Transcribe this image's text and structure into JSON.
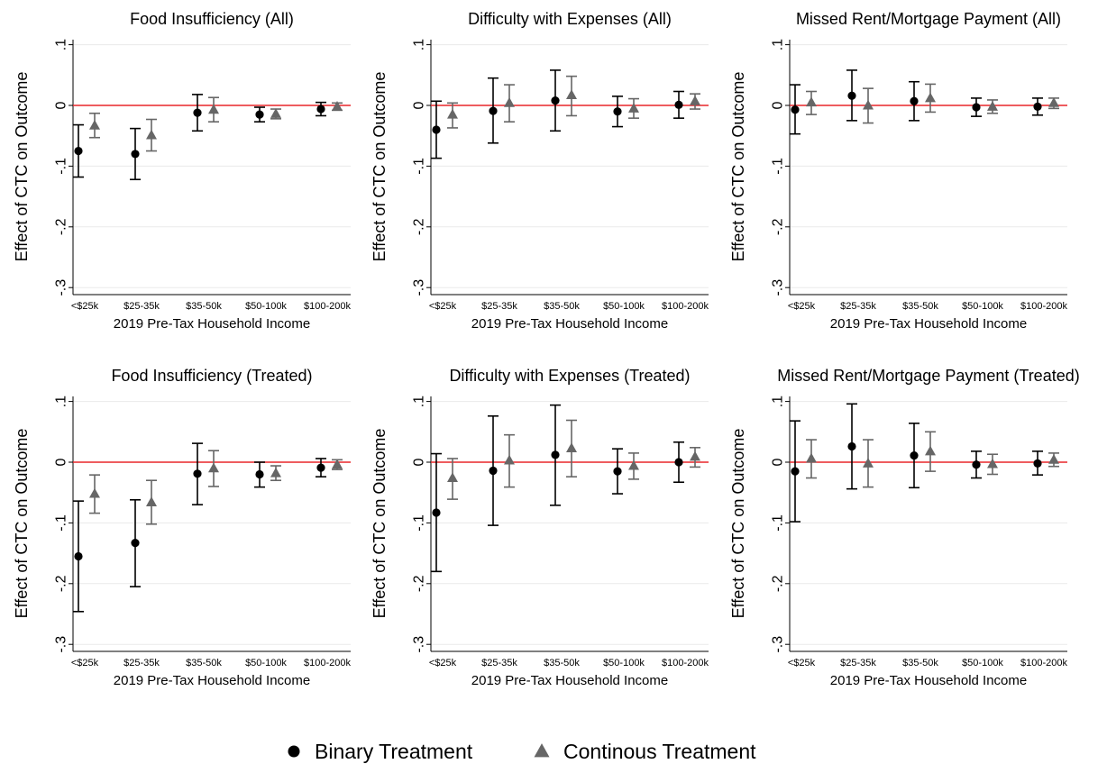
{
  "legend": {
    "placement": "bottom-center",
    "items": [
      {
        "label": "Binary Treatment",
        "marker": "circle",
        "color": "#000000"
      },
      {
        "label": "Continous Treatment",
        "marker": "triangle",
        "color": "#666666"
      }
    ]
  },
  "colors": {
    "binary": "#000000",
    "continuous": "#666666",
    "zero_line": "#e8272a",
    "grid": "#eaeaea"
  },
  "chart_data": [
    {
      "type": "scatter",
      "title": "Food Insufficiency (All)",
      "xlabel": "2019 Pre-Tax Household Income",
      "ylabel": "Effect of CTC on Outcome",
      "categories": [
        "<$25k",
        "$25-35k",
        "$35-50k",
        "$50-100k",
        "$100-200k"
      ],
      "yticks": [
        ".1",
        "0",
        "-.1",
        "-.2",
        "-.3"
      ],
      "ylim": [
        -0.31,
        0.11
      ],
      "grid": true,
      "series": [
        {
          "name": "Binary Treatment",
          "marker": "circle",
          "values": [
            -0.075,
            -0.08,
            -0.012,
            -0.015,
            -0.006
          ],
          "lower": [
            -0.118,
            -0.122,
            -0.042,
            -0.027,
            -0.017
          ],
          "upper": [
            -0.032,
            -0.038,
            0.018,
            -0.003,
            0.005
          ]
        },
        {
          "name": "Continous Treatment",
          "marker": "triangle",
          "values": [
            -0.033,
            -0.049,
            -0.007,
            -0.014,
            -0.002
          ],
          "lower": [
            -0.053,
            -0.075,
            -0.027,
            -0.022,
            -0.008
          ],
          "upper": [
            -0.013,
            -0.023,
            0.013,
            -0.006,
            0.004
          ]
        }
      ]
    },
    {
      "type": "scatter",
      "title": "Difficulty with Expenses (All)",
      "xlabel": "2019 Pre-Tax Household Income",
      "ylabel": "Effect of CTC on Outcome",
      "categories": [
        "<$25k",
        "$25-35k",
        "$35-50k",
        "$50-100k",
        "$100-200k"
      ],
      "yticks": [
        ".1",
        "0",
        "-.1",
        "-.2",
        "-.3"
      ],
      "ylim": [
        -0.31,
        0.11
      ],
      "grid": true,
      "series": [
        {
          "name": "Binary Treatment",
          "marker": "circle",
          "values": [
            -0.04,
            -0.009,
            0.008,
            -0.01,
            0.001
          ],
          "lower": [
            -0.087,
            -0.062,
            -0.042,
            -0.035,
            -0.021
          ],
          "upper": [
            0.007,
            0.045,
            0.058,
            0.015,
            0.023
          ]
        },
        {
          "name": "Continous Treatment",
          "marker": "triangle",
          "values": [
            -0.015,
            0.004,
            0.017,
            -0.005,
            0.007
          ],
          "lower": [
            -0.037,
            -0.027,
            -0.017,
            -0.021,
            -0.006
          ],
          "upper": [
            0.004,
            0.034,
            0.048,
            0.011,
            0.019
          ]
        }
      ]
    },
    {
      "type": "scatter",
      "title": "Missed Rent/Mortgage Payment (All)",
      "xlabel": "2019 Pre-Tax Household Income",
      "ylabel": "Effect of CTC on Outcome",
      "categories": [
        "<$25k",
        "$25-35k",
        "$35-50k",
        "$50-100k",
        "$100-200k"
      ],
      "yticks": [
        ".1",
        "0",
        "-.1",
        "-.2",
        "-.3"
      ],
      "ylim": [
        -0.31,
        0.11
      ],
      "grid": true,
      "series": [
        {
          "name": "Binary Treatment",
          "marker": "circle",
          "values": [
            -0.007,
            0.016,
            0.007,
            -0.003,
            -0.002
          ],
          "lower": [
            -0.047,
            -0.025,
            -0.025,
            -0.018,
            -0.016
          ],
          "upper": [
            0.034,
            0.058,
            0.039,
            0.012,
            0.012
          ]
        },
        {
          "name": "Continous Treatment",
          "marker": "triangle",
          "values": [
            0.005,
            0.0,
            0.012,
            -0.002,
            0.004
          ],
          "lower": [
            -0.015,
            -0.029,
            -0.011,
            -0.013,
            -0.005
          ],
          "upper": [
            0.023,
            0.028,
            0.035,
            0.009,
            0.012
          ]
        }
      ]
    },
    {
      "type": "scatter",
      "title": "Food Insufficiency (Treated)",
      "xlabel": "2019 Pre-Tax Household Income",
      "ylabel": "Effect of CTC on Outcome",
      "categories": [
        "<$25k",
        "$25-35k",
        "$35-50k",
        "$50-100k",
        "$100-200k"
      ],
      "yticks": [
        ".1",
        "0",
        "-.1",
        "-.2",
        "-.3"
      ],
      "ylim": [
        -0.31,
        0.11
      ],
      "grid": true,
      "series": [
        {
          "name": "Binary Treatment",
          "marker": "circle",
          "values": [
            -0.155,
            -0.133,
            -0.019,
            -0.02,
            -0.009
          ],
          "lower": [
            -0.246,
            -0.205,
            -0.07,
            -0.041,
            -0.024
          ],
          "upper": [
            -0.064,
            -0.062,
            0.031,
            0.0,
            0.006
          ]
        },
        {
          "name": "Continous Treatment",
          "marker": "triangle",
          "values": [
            -0.052,
            -0.066,
            -0.01,
            -0.018,
            -0.004
          ],
          "lower": [
            -0.084,
            -0.102,
            -0.04,
            -0.03,
            -0.012
          ],
          "upper": [
            -0.021,
            -0.03,
            0.019,
            -0.006,
            0.004
          ]
        }
      ]
    },
    {
      "type": "scatter",
      "title": "Difficulty with Expenses (Treated)",
      "xlabel": "2019 Pre-Tax Household Income",
      "ylabel": "Effect of CTC on Outcome",
      "categories": [
        "<$25k",
        "$25-35k",
        "$35-50k",
        "$50-100k",
        "$100-200k"
      ],
      "yticks": [
        ".1",
        "0",
        "-.1",
        "-.2",
        "-.3"
      ],
      "ylim": [
        -0.31,
        0.11
      ],
      "grid": true,
      "series": [
        {
          "name": "Binary Treatment",
          "marker": "circle",
          "values": [
            -0.083,
            -0.014,
            0.012,
            -0.015,
            0.0
          ],
          "lower": [
            -0.18,
            -0.104,
            -0.071,
            -0.052,
            -0.033
          ],
          "upper": [
            0.014,
            0.076,
            0.094,
            0.022,
            0.033
          ]
        },
        {
          "name": "Continous Treatment",
          "marker": "triangle",
          "values": [
            -0.026,
            0.003,
            0.023,
            -0.006,
            0.009
          ],
          "lower": [
            -0.061,
            -0.041,
            -0.024,
            -0.028,
            -0.008
          ],
          "upper": [
            0.006,
            0.045,
            0.069,
            0.015,
            0.024
          ]
        }
      ]
    },
    {
      "type": "scatter",
      "title": "Missed Rent/Mortgage Payment (Treated)",
      "xlabel": "2019 Pre-Tax Household Income",
      "ylabel": "Effect of CTC on Outcome",
      "categories": [
        "<$25k",
        "$25-35k",
        "$35-50k",
        "$50-100k",
        "$100-200k"
      ],
      "yticks": [
        ".1",
        "0",
        "-.1",
        "-.2",
        "-.3"
      ],
      "ylim": [
        -0.31,
        0.11
      ],
      "grid": true,
      "series": [
        {
          "name": "Binary Treatment",
          "marker": "circle",
          "values": [
            -0.015,
            0.026,
            0.011,
            -0.004,
            -0.002
          ],
          "lower": [
            -0.098,
            -0.044,
            -0.042,
            -0.026,
            -0.021
          ],
          "upper": [
            0.068,
            0.096,
            0.064,
            0.018,
            0.018
          ]
        },
        {
          "name": "Continous Treatment",
          "marker": "triangle",
          "values": [
            0.006,
            -0.002,
            0.018,
            -0.003,
            0.004
          ],
          "lower": [
            -0.026,
            -0.041,
            -0.015,
            -0.02,
            -0.007
          ],
          "upper": [
            0.037,
            0.037,
            0.05,
            0.013,
            0.015
          ]
        }
      ]
    }
  ]
}
